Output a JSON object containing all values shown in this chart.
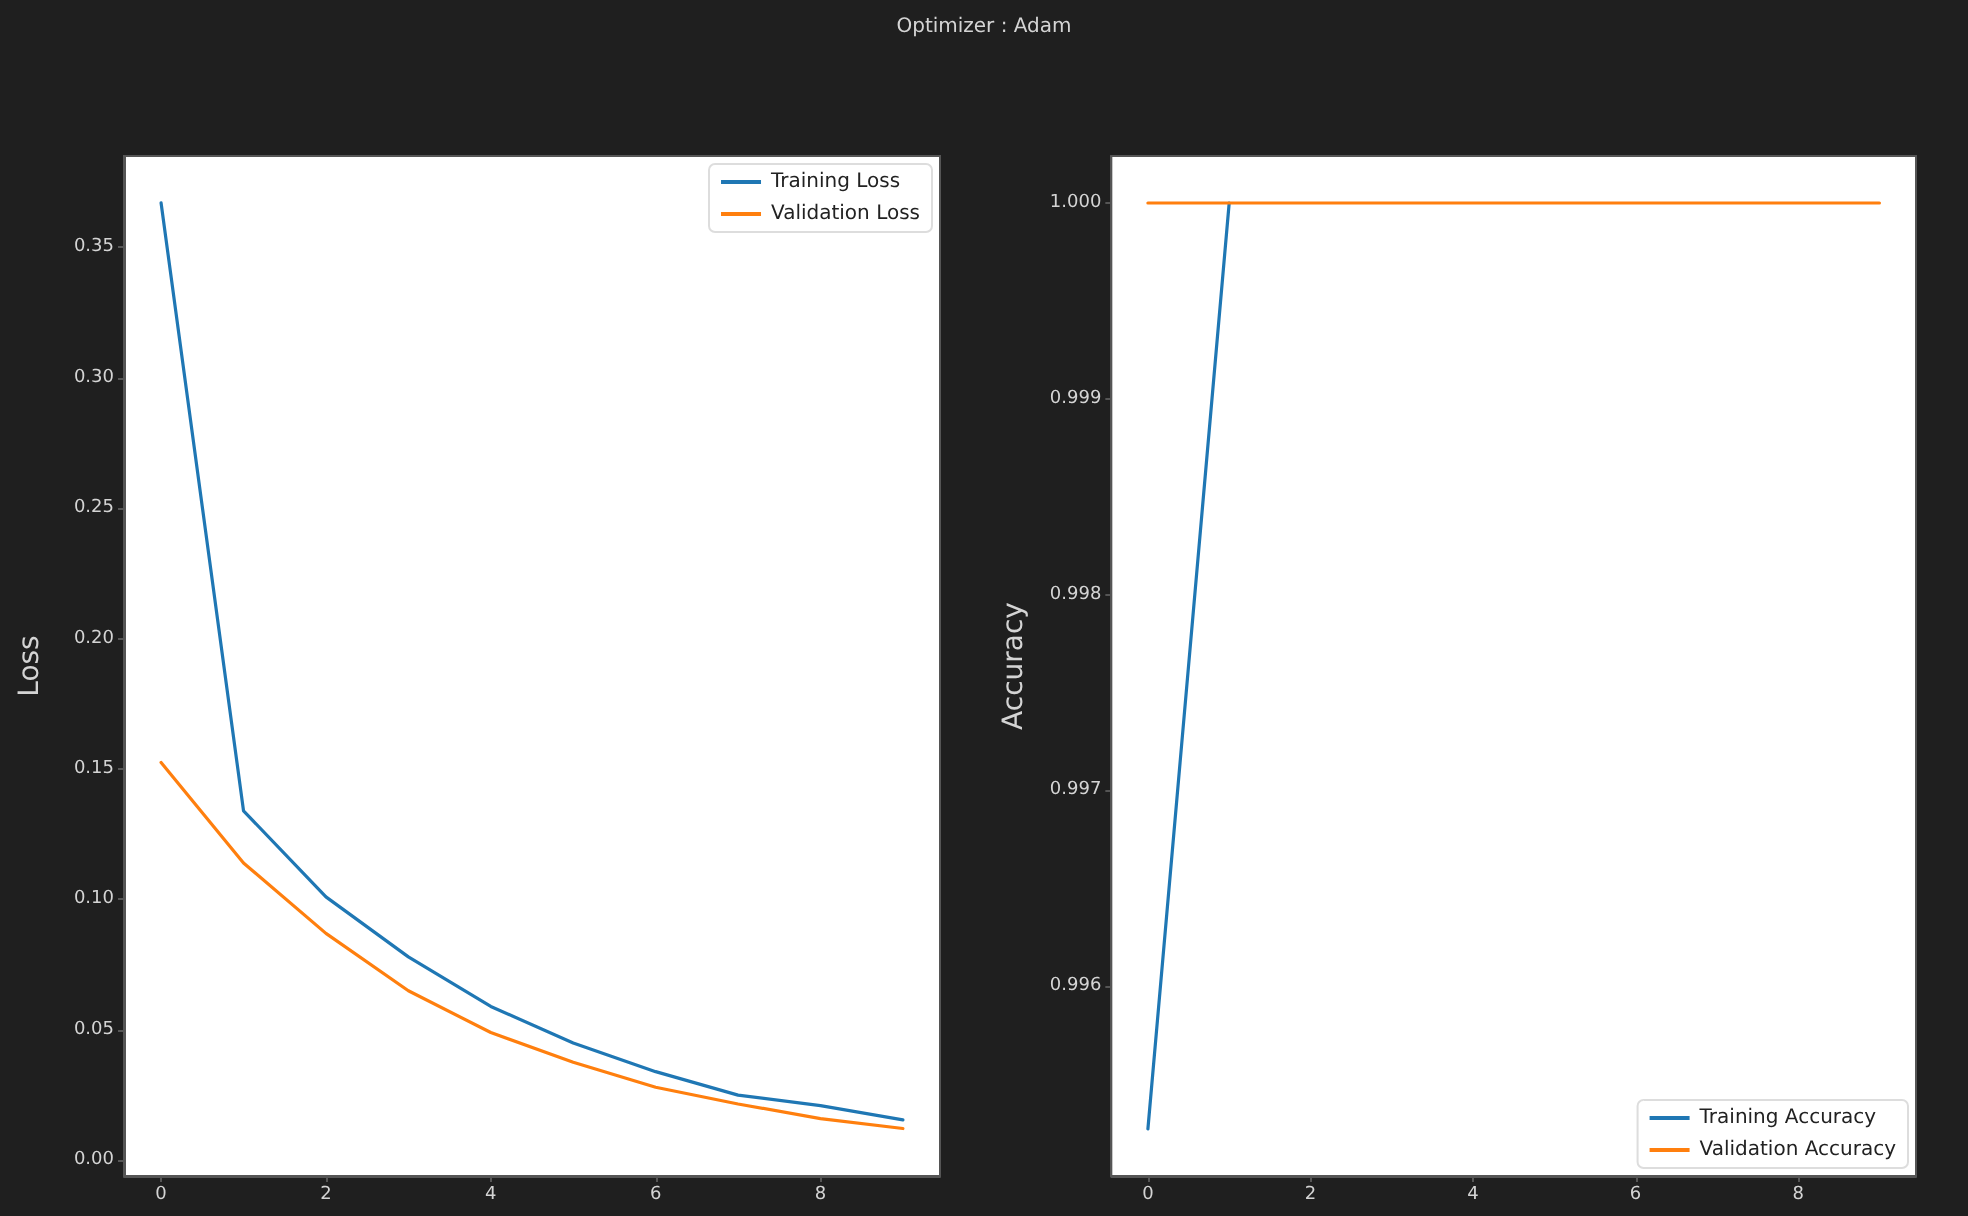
{
  "chart_data": [
    {
      "type": "line",
      "title": "Optimizer : Adam",
      "ylabel": "Loss",
      "x": [
        0,
        1,
        2,
        3,
        4,
        5,
        6,
        7,
        8,
        9
      ],
      "xlim": [
        -0.45,
        9.45
      ],
      "xticks": [
        0,
        2,
        4,
        6,
        8
      ],
      "ylim": [
        -0.006,
        0.385
      ],
      "yticks": [
        {
          "value": 0,
          "label": "0.00"
        },
        0.05,
        {
          "value": 0.1,
          "label": "0.10"
        },
        0.15,
        {
          "value": 0.2,
          "label": "0.20"
        },
        0.25,
        {
          "value": 0.3,
          "label": "0.30"
        },
        0.35
      ],
      "legend": "top right",
      "series": [
        {
          "name": "Training Loss",
          "color": "#1f77b4",
          "values": [
            0.367,
            0.134,
            0.101,
            0.078,
            0.059,
            0.045,
            0.034,
            0.025,
            0.021,
            0.0155
          ]
        },
        {
          "name": "Validation Loss",
          "color": "#ff7f0e",
          "values": [
            0.1525,
            0.114,
            0.087,
            0.065,
            0.049,
            0.0376,
            0.028,
            0.0216,
            0.016,
            0.0122
          ]
        }
      ]
    },
    {
      "type": "line",
      "ylabel": "Accuracy",
      "x": [
        0,
        1,
        2,
        3,
        4,
        5,
        6,
        7,
        8,
        9
      ],
      "xlim": [
        -0.45,
        9.45
      ],
      "xticks": [
        0,
        2,
        4,
        6,
        8
      ],
      "ylim": [
        0.99503,
        1.00024
      ],
      "yticks": [
        0.996,
        0.997,
        0.998,
        0.999,
        {
          "value": 1,
          "label": "1.000"
        }
      ],
      "legend": "bottom right",
      "series": [
        {
          "name": "Training Accuracy",
          "color": "#1f77b4",
          "values": [
            0.99527,
            1,
            null,
            null,
            null,
            null,
            null,
            null,
            null,
            null
          ]
        },
        {
          "name": "Validation Accuracy",
          "color": "#ff7f0e",
          "values": [
            1,
            1,
            1,
            1,
            1,
            1,
            1,
            1,
            1,
            1
          ]
        }
      ]
    }
  ]
}
